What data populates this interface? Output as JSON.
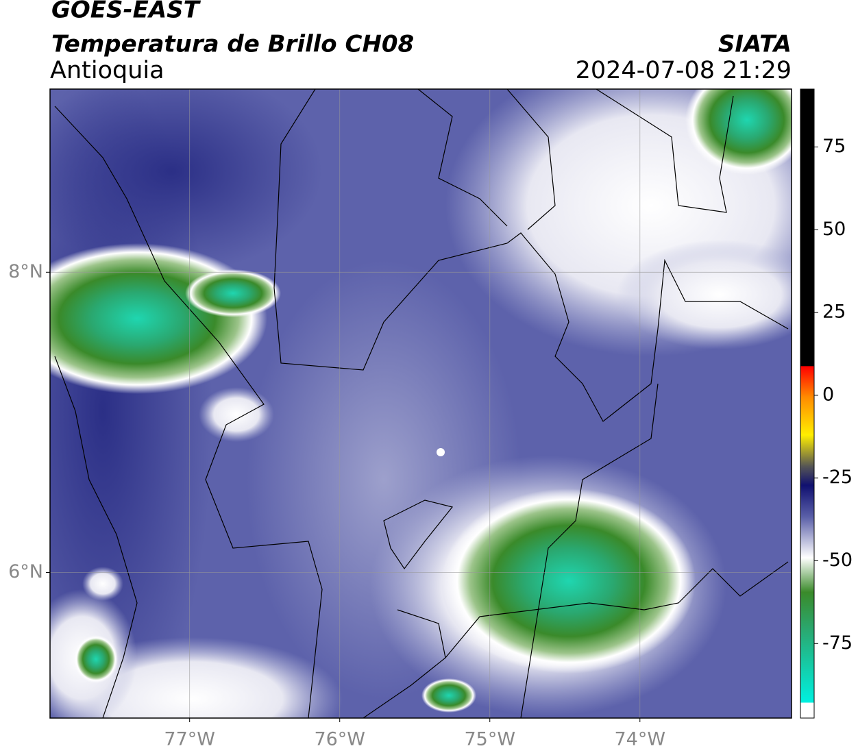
{
  "header": {
    "title": "GOES-EAST",
    "subtitle": "Temperatura de Brillo CH08",
    "region": "Antioquia",
    "source": "SIATA",
    "datetime": "2024-07-08 21:29"
  },
  "map": {
    "xlim": [
      -77.93,
      -72.99
    ],
    "ylim": [
      5.03,
      9.22
    ],
    "xticks": [
      {
        "value": -77,
        "label": "77°W"
      },
      {
        "value": -76,
        "label": "76°W"
      },
      {
        "value": -75,
        "label": "75°W"
      },
      {
        "value": -74,
        "label": "74°W"
      }
    ],
    "yticks": [
      {
        "value": 6,
        "label": "6°N"
      },
      {
        "value": 8,
        "label": "8°N"
      }
    ],
    "grid": true
  },
  "colorbar": {
    "lim": [
      -97.5,
      92.5
    ],
    "ticks": [
      -75,
      -50,
      -25,
      0,
      25,
      50,
      75
    ]
  }
}
